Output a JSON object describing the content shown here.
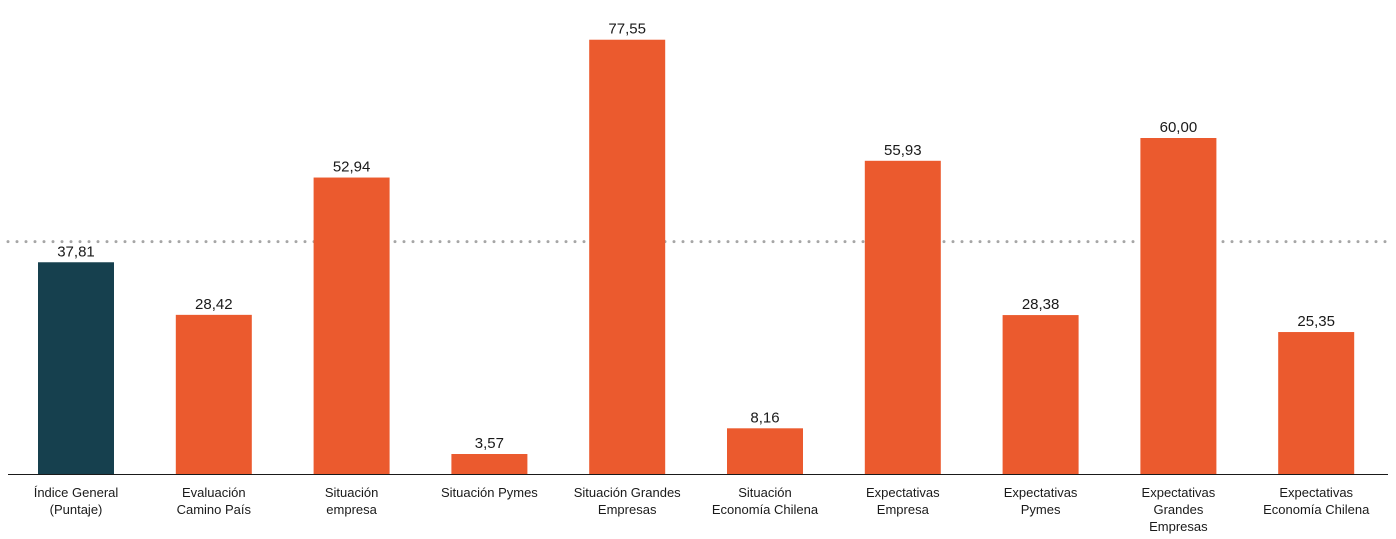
{
  "chart_data": {
    "type": "bar",
    "title": "",
    "xlabel": "",
    "ylabel": "",
    "ylim": [
      0,
      80
    ],
    "grid": false,
    "legend": "none",
    "categories": [
      [
        "Índice General",
        "(Puntaje)"
      ],
      [
        "Evaluación",
        "Camino País"
      ],
      [
        "Situación",
        "empresa"
      ],
      [
        "Situación Pymes"
      ],
      [
        "Situación Grandes",
        "Empresas"
      ],
      [
        "Situación",
        "Economía Chilena"
      ],
      [
        "Expectativas",
        "Empresa"
      ],
      [
        "Expectativas",
        "Pymes"
      ],
      [
        "Expectativas",
        "Grandes",
        "Empresas"
      ],
      [
        "Expectativas",
        "Economía Chilena"
      ]
    ],
    "values": [
      37.81,
      28.42,
      52.94,
      3.57,
      77.55,
      8.16,
      55.93,
      28.38,
      60.0,
      25.35
    ],
    "value_labels": [
      "37,81",
      "28,42",
      "52,94",
      "3,57",
      "77,55",
      "8,16",
      "55,93",
      "28,38",
      "60,00",
      "25,35"
    ],
    "bar_colors": [
      "#16404e",
      "#eb5a2e",
      "#eb5a2e",
      "#eb5a2e",
      "#eb5a2e",
      "#eb5a2e",
      "#eb5a2e",
      "#eb5a2e",
      "#eb5a2e",
      "#eb5a2e"
    ],
    "reference_line": {
      "value": 41.5,
      "style": "dotted",
      "color": "#a6a6a6"
    },
    "axis_color": "#1a1a1a"
  }
}
